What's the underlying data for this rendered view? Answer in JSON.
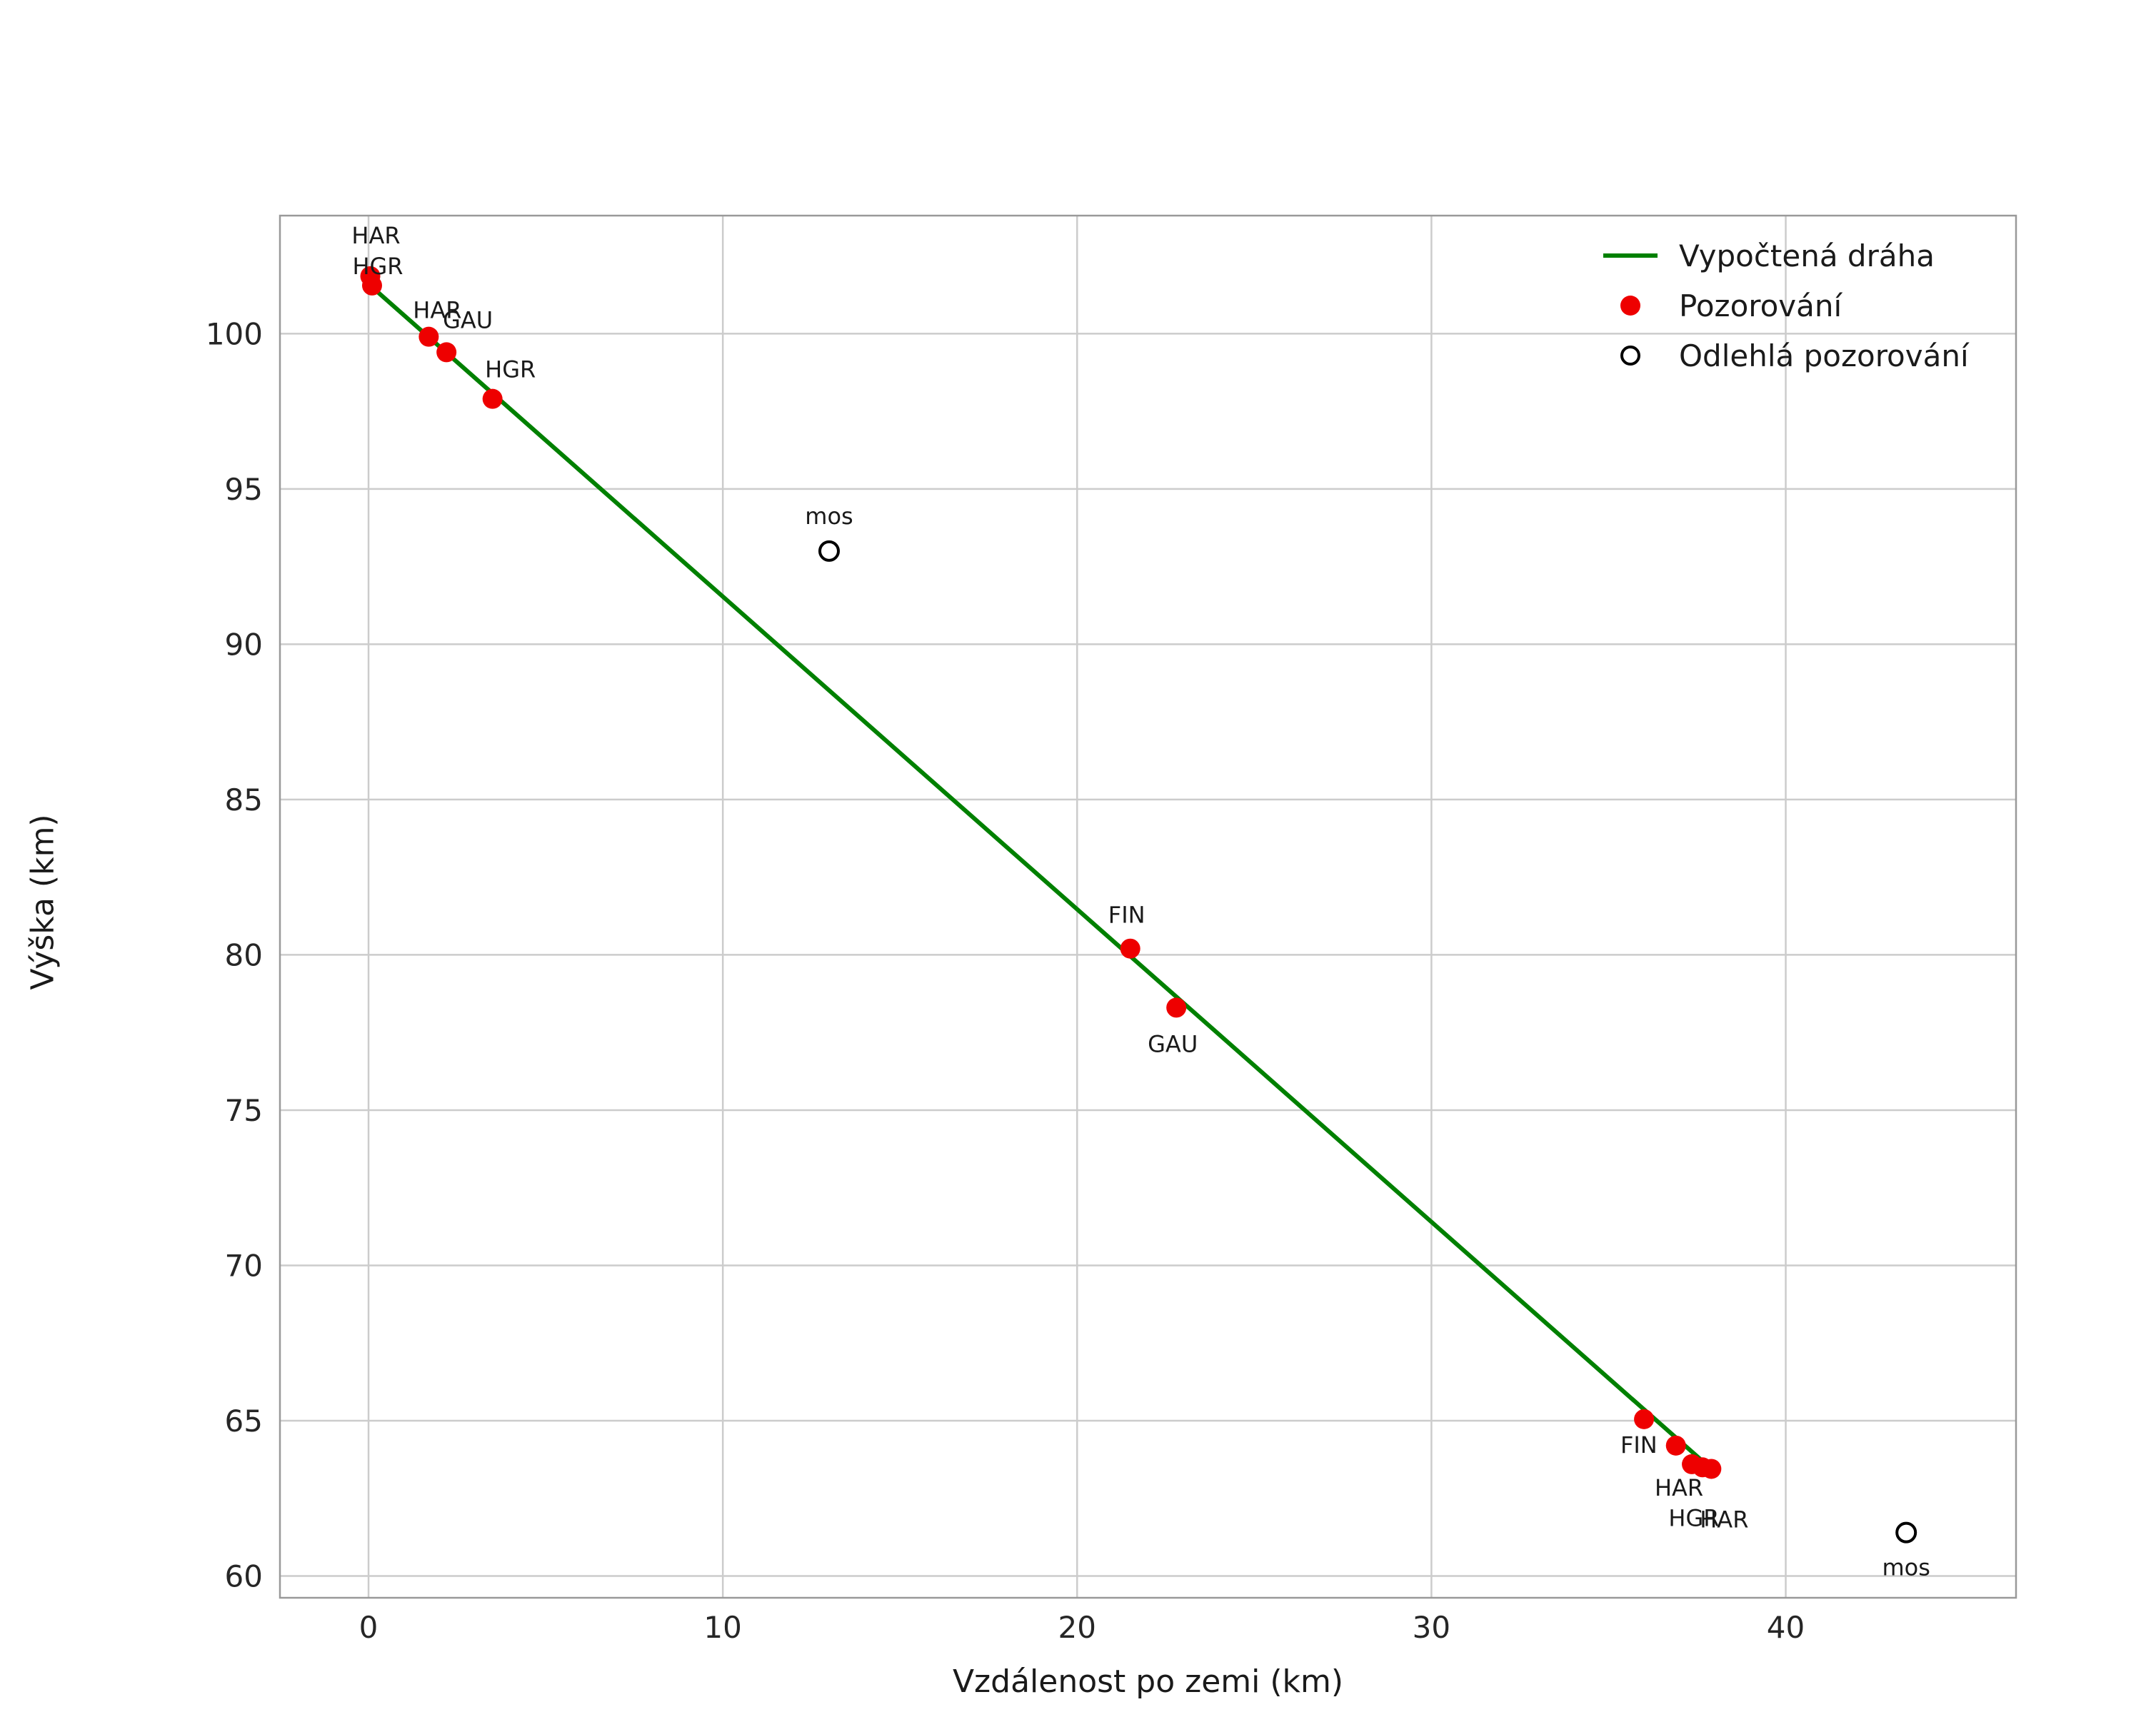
{
  "figure": {
    "background": "#ffffff"
  },
  "chart_data": {
    "type": "scatter",
    "title": "",
    "xlabel": "Vzdálenost po zemi (km)",
    "ylabel": "Výška (km)",
    "xlim": [
      -2.5,
      46.5
    ],
    "ylim": [
      59.3,
      103.8
    ],
    "xticks": [
      0,
      10,
      20,
      30,
      40
    ],
    "yticks": [
      60,
      65,
      70,
      75,
      80,
      85,
      90,
      95,
      100
    ],
    "grid": true,
    "legend_position": "upper right",
    "colors": {
      "trajectory": "#008000",
      "observation": "#ee0000",
      "outlier_fill": "#ffffff",
      "outlier_stroke": "#000000",
      "grid": "#cccccc",
      "frame": "#999999",
      "tick_text": "#262626",
      "label_text": "#1a1a1a"
    },
    "trajectory": {
      "name": "Vypočtená dráha",
      "points": [
        [
          0.0,
          101.6
        ],
        [
          37.9,
          63.45
        ]
      ]
    },
    "observations": {
      "name": "Pozorování",
      "points": [
        {
          "x": 0.05,
          "y": 101.85,
          "station": "HAR",
          "dx": 8,
          "dy": -46
        },
        {
          "x": 0.1,
          "y": 101.55,
          "station": "HGR",
          "dx": 8,
          "dy": -16
        },
        {
          "x": 1.7,
          "y": 99.9,
          "station": "HAR",
          "dx": 12,
          "dy": -26
        },
        {
          "x": 2.2,
          "y": 99.4,
          "station": "GAU",
          "dx": 30,
          "dy": -34
        },
        {
          "x": 3.5,
          "y": 97.9,
          "station": "HGR",
          "dx": 25,
          "dy": -30
        },
        {
          "x": 21.5,
          "y": 80.2,
          "station": "FIN",
          "dx": -5,
          "dy": -36
        },
        {
          "x": 22.8,
          "y": 78.3,
          "station": "GAU",
          "dx": -5,
          "dy": 62
        },
        {
          "x": 36.0,
          "y": 65.05,
          "station": ""
        },
        {
          "x": 36.9,
          "y": 64.2,
          "station": "FIN",
          "dx": -26,
          "dy": 10,
          "anchor": "end"
        },
        {
          "x": 37.35,
          "y": 63.6,
          "station": "HAR",
          "dx": -18,
          "dy": 44
        },
        {
          "x": 37.65,
          "y": 63.5,
          "station": "HGR",
          "dx": -12,
          "dy": 82
        },
        {
          "x": 37.9,
          "y": 63.45,
          "station": "HAR",
          "dx": 18,
          "dy": 82
        }
      ]
    },
    "outliers": {
      "name": "Odlehlá pozorování",
      "points": [
        {
          "x": 13.0,
          "y": 93.0,
          "station": "mos",
          "dx": 0,
          "dy": -38
        },
        {
          "x": 43.4,
          "y": 61.4,
          "station": "mos",
          "dx": 0,
          "dy": 60
        }
      ]
    },
    "legend": {
      "items": [
        {
          "label": "Vypočtená dráha",
          "marker": "line"
        },
        {
          "label": "Pozorování",
          "marker": "dot"
        },
        {
          "label": "Odlehlá pozorování",
          "marker": "open-circle"
        }
      ]
    }
  }
}
